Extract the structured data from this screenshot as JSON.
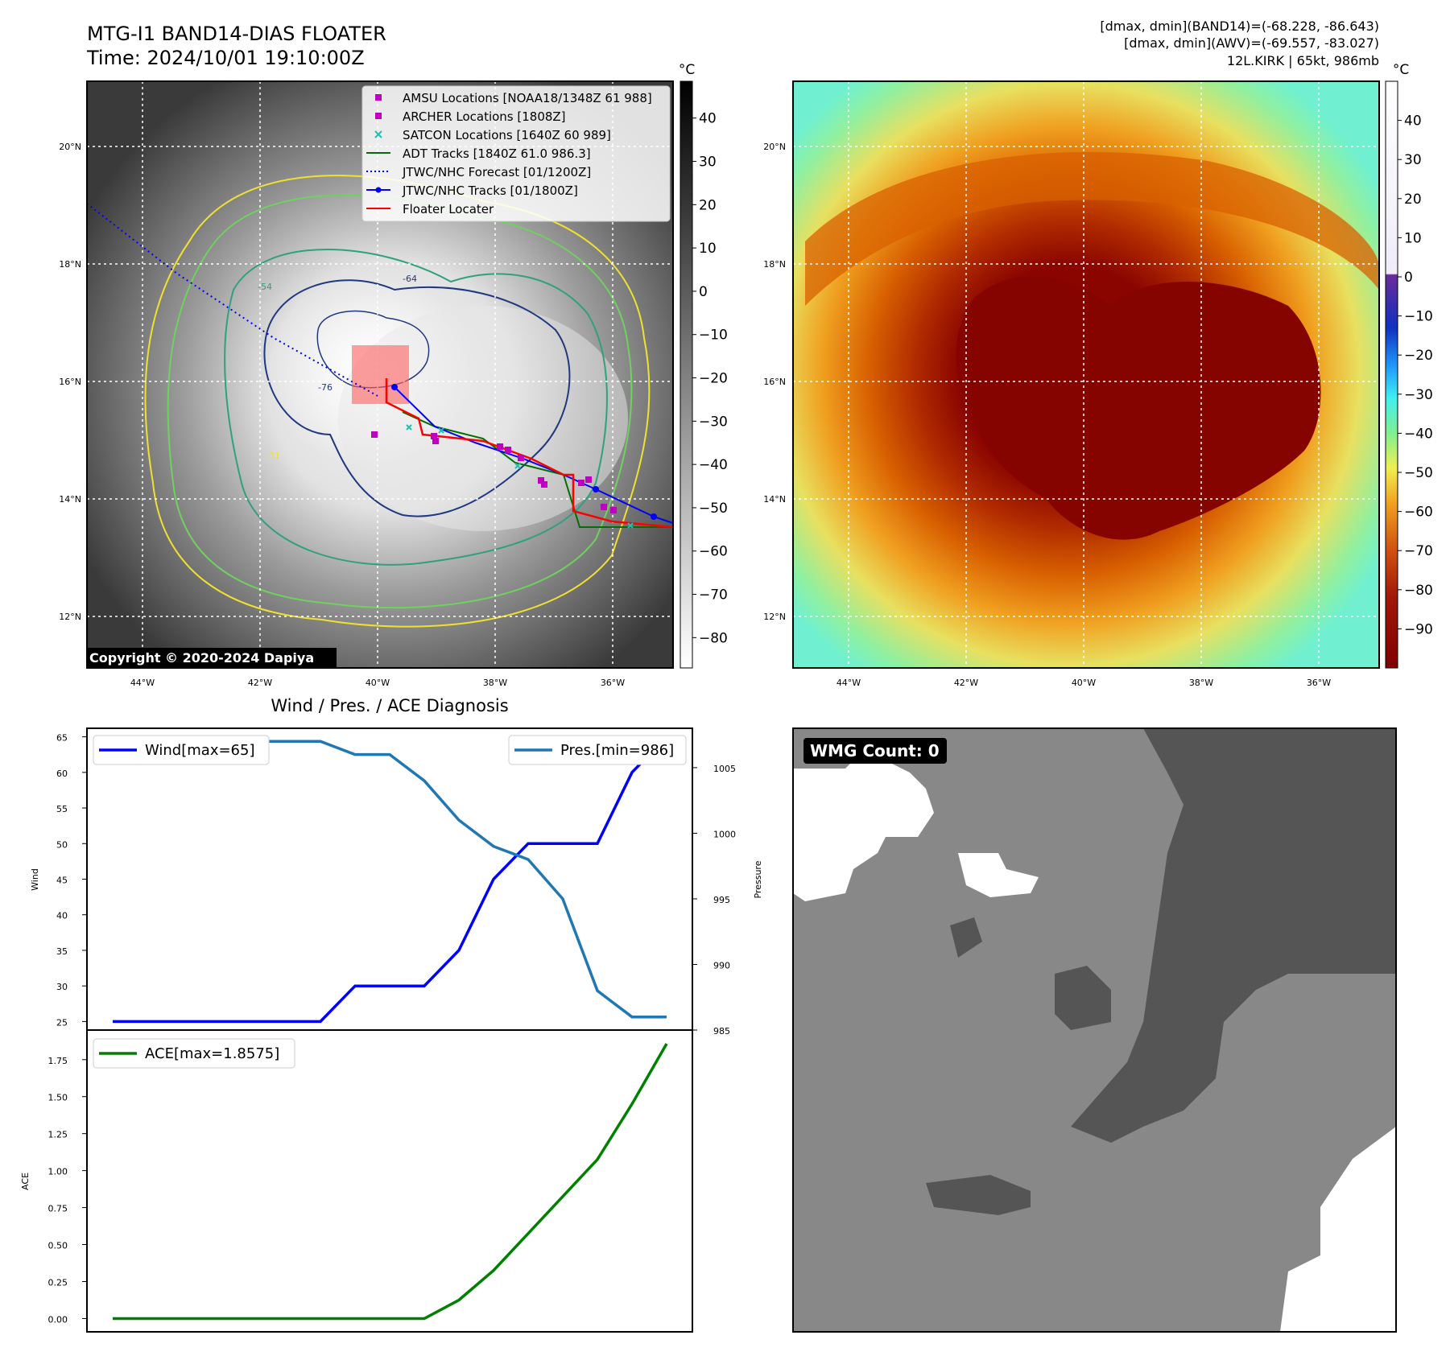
{
  "header": {
    "title_line1": "MTG-I1 BAND14-DIAS FLOATER",
    "title_line2": "Time: 2024/10/01 19:10:00Z",
    "stats_line1": "[dmax, dmin](BAND14)=(-68.228, -86.643)",
    "stats_line2": "[dmax, dmin](AWV)=(-69.557, -83.027)",
    "stats_line3": "12L.KIRK | 65kt, 986mb"
  },
  "map": {
    "lat_labels": [
      "20°N",
      "18°N",
      "16°N",
      "14°N",
      "12°N"
    ],
    "lon_labels": [
      "44°W",
      "42°W",
      "40°W",
      "38°W",
      "36°W"
    ],
    "copyright": "Copyright © 2020-2024 Dapiya",
    "contour_labels": [
      "-31",
      "-54",
      "-64",
      "-76"
    ],
    "legend": [
      {
        "label": "AMSU Locations [NOAA18/1348Z 61 988]",
        "color": "#c000c0",
        "marker": "square"
      },
      {
        "label": "ARCHER Locations [1808Z]",
        "color": "#c000c0",
        "marker": "square"
      },
      {
        "label": "SATCON Locations [1640Z 60 989]",
        "color": "#20c0b0",
        "marker": "x"
      },
      {
        "label": "ADT Tracks [1840Z 61.0 986.3]",
        "color": "#007000",
        "marker": "line"
      },
      {
        "label": "JTWC/NHC Forecast [01/1200Z]",
        "color": "#0000ff",
        "marker": "dotted"
      },
      {
        "label": "JTWC/NHC Tracks [01/1800Z]",
        "color": "#0000ff",
        "marker": "line-dot"
      },
      {
        "label": "Floater Locater",
        "color": "#ff0000",
        "marker": "line"
      }
    ]
  },
  "colorbar_left": {
    "unit": "°C",
    "ticks": [
      "40",
      "30",
      "20",
      "10",
      "0",
      "−10",
      "−20",
      "−30",
      "−40",
      "−50",
      "−60",
      "−70",
      "−80"
    ]
  },
  "colorbar_right": {
    "unit": "°C",
    "ticks": [
      "40",
      "30",
      "20",
      "10",
      "0",
      "−10",
      "−20",
      "−30",
      "−40",
      "−50",
      "−60",
      "−70",
      "−80",
      "−90"
    ]
  },
  "diagnosis": {
    "title": "Wind / Pres. / ACE Diagnosis",
    "wind_label": "Wind",
    "pressure_label": "Pressure",
    "ace_label": "ACE",
    "legend_wind": "Wind[max=65]",
    "legend_pres": "Pres.[min=986]",
    "legend_ace": "ACE[max=1.8575]"
  },
  "wmg": {
    "label": "WMG Count: 0"
  },
  "chart_data": [
    {
      "type": "line",
      "title": "Wind / Pres. / ACE Diagnosis",
      "x": [
        0,
        1,
        2,
        3,
        4,
        5,
        6,
        7,
        8,
        9,
        10,
        11,
        12,
        13,
        14,
        15,
        16
      ],
      "series": [
        {
          "name": "Wind[max=65]",
          "axis": "left",
          "color": "#0000ff",
          "values": [
            25,
            25,
            25,
            25,
            25,
            25,
            25,
            30,
            30,
            30,
            35,
            45,
            50,
            50,
            50,
            60,
            65
          ]
        },
        {
          "name": "Pres.[min=986]",
          "axis": "right",
          "color": "#1f77b4",
          "values": [
            1007,
            1007,
            1007,
            1007,
            1007,
            1007,
            1007,
            1006,
            1006,
            1004,
            1001,
            999,
            998,
            995,
            988,
            986,
            986
          ]
        }
      ],
      "ylabel": "Wind",
      "y2label": "Pressure",
      "yticks": [
        25,
        30,
        35,
        40,
        45,
        50,
        55,
        60,
        65
      ],
      "y2ticks": [
        985,
        990,
        995,
        1000,
        1005
      ],
      "ylim": [
        23.8,
        66.2
      ],
      "y2lim": [
        985,
        1008
      ]
    },
    {
      "type": "line",
      "x": [
        0,
        1,
        2,
        3,
        4,
        5,
        6,
        7,
        8,
        9,
        10,
        11,
        12,
        13,
        14,
        15,
        16
      ],
      "series": [
        {
          "name": "ACE[max=1.8575]",
          "color": "#008000",
          "values": [
            0,
            0,
            0,
            0,
            0,
            0,
            0,
            0,
            0,
            0,
            0.125,
            0.325,
            0.575,
            0.825,
            1.075,
            1.45,
            1.8575
          ]
        }
      ],
      "ylabel": "ACE",
      "yticks": [
        0.0,
        0.25,
        0.5,
        0.75,
        1.0,
        1.25,
        1.5,
        1.75
      ],
      "ytick_labels": [
        "0.00",
        "0.25",
        "0.50",
        "0.75",
        "1.00",
        "1.25",
        "1.50",
        "1.75"
      ],
      "ylim": [
        -0.09,
        1.95
      ]
    }
  ]
}
